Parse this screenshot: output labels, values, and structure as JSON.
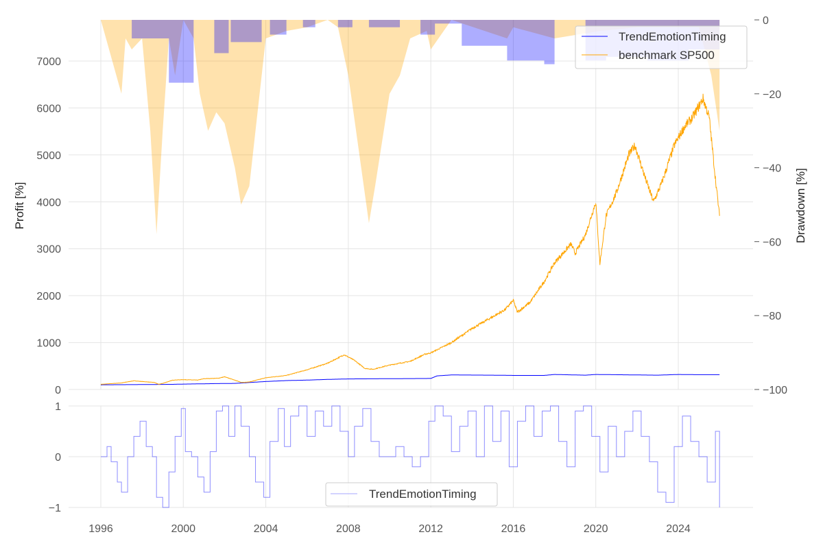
{
  "chart_data": [
    {
      "type": "line",
      "panel": "top",
      "ylabel": "Profit [%]",
      "ylabel_right": "Drawdown [%]",
      "xlim": [
        1994.6,
        2027.6
      ],
      "ylim": [
        0,
        7850
      ],
      "ylim_right": [
        -100,
        0
      ],
      "xticks": [
        1996,
        2000,
        2004,
        2008,
        2012,
        2016,
        2020,
        2024
      ],
      "yticks": [
        0,
        1000,
        2000,
        3000,
        4000,
        5000,
        6000,
        7000
      ],
      "yticks_right": [
        0,
        -20,
        -40,
        -60,
        -80,
        -100
      ],
      "grid": true,
      "legend_position": "top-right",
      "series": [
        {
          "name": "TrendEmotionTiming",
          "color": "#0000ff",
          "x": [
            1996,
            1998,
            1999.5,
            2000,
            2001.5,
            2002.5,
            2004,
            2005,
            2006,
            2007,
            2008,
            2010,
            2012,
            2012.3,
            2013,
            2015,
            2016,
            2017.5,
            2018,
            2019.5,
            2020,
            2022,
            2023,
            2024,
            2025,
            2026
          ],
          "y": [
            100,
            105,
            110,
            115,
            125,
            130,
            170,
            190,
            200,
            215,
            225,
            230,
            235,
            290,
            310,
            305,
            300,
            300,
            320,
            305,
            320,
            310,
            305,
            320,
            315,
            315
          ]
        },
        {
          "name": "benchmark SP500",
          "color": "#ffa500",
          "x": [
            1996,
            1996.5,
            1997,
            1997.6,
            1998,
            1998.6,
            1998.8,
            1999,
            1999.5,
            2000,
            2000.7,
            2001,
            2001.7,
            2002,
            2002.5,
            2002.8,
            2003.2,
            2004,
            2005,
            2006,
            2007,
            2007.8,
            2008.3,
            2008.8,
            2009.2,
            2010,
            2011,
            2011.7,
            2012,
            2013,
            2014,
            2015,
            2015.6,
            2016,
            2016.2,
            2016.8,
            2017.5,
            2018,
            2018.8,
            2019,
            2019.5,
            2020,
            2020.2,
            2020.5,
            2021,
            2021.6,
            2021.9,
            2022.4,
            2022.8,
            2023.2,
            2023.8,
            2024.3,
            2024.7,
            2025.2,
            2025.5,
            2025.8,
            2026
          ],
          "y": [
            110,
            125,
            140,
            185,
            170,
            150,
            110,
            130,
            200,
            210,
            200,
            230,
            240,
            270,
            200,
            150,
            160,
            250,
            300,
            420,
            560,
            740,
            620,
            450,
            430,
            520,
            600,
            750,
            780,
            1000,
            1300,
            1550,
            1700,
            1900,
            1650,
            1850,
            2300,
            2700,
            3100,
            2900,
            3300,
            4000,
            2680,
            3700,
            4200,
            5000,
            5200,
            4500,
            4000,
            4400,
            5200,
            5600,
            5800,
            6200,
            5800,
            4500,
            3700
          ]
        }
      ],
      "drawdown_series": [
        {
          "name": "TrendEmotionTiming drawdown",
          "color": "#0000ff",
          "x": [
            1996,
            1997.5,
            1999.3,
            2000.5,
            2001.5,
            2002.2,
            2002.3,
            2003.8,
            2004.2,
            2005,
            2005.8,
            2006.4,
            2007.5,
            2008.2,
            2009,
            2010.5,
            2011.5,
            2012.2,
            2013.5,
            2015.7,
            2017.5,
            2018,
            2019.5,
            2020.5,
            2022.5,
            2024.5,
            2026
          ],
          "y": [
            0,
            -5,
            -17,
            0,
            -9,
            0,
            -6,
            0,
            -4,
            0,
            -2,
            0,
            -2,
            0,
            -2,
            0,
            -4,
            -1,
            -7,
            -11,
            -12,
            0,
            -11,
            -10,
            -11,
            -8,
            -8
          ]
        },
        {
          "name": "benchmark SP500 drawdown",
          "color": "#ffa500",
          "x": [
            1996,
            1996.5,
            1997,
            1997.2,
            1997.5,
            1998,
            1998.4,
            1998.7,
            1999,
            1999.3,
            1999.6,
            2000,
            2000.5,
            2000.8,
            2001.2,
            2001.6,
            2002,
            2002.5,
            2002.8,
            2003.2,
            2003.7,
            2004,
            2005,
            2006,
            2007,
            2007.5,
            2008,
            2008.5,
            2009,
            2009.3,
            2010,
            2010.5,
            2011,
            2011.8,
            2012,
            2013,
            2015.7,
            2016,
            2018,
            2020.2,
            2022,
            2025,
            2025.6,
            2026
          ],
          "y": [
            0,
            -10,
            -20,
            -5,
            -8,
            -5,
            -30,
            -58,
            -30,
            -5,
            -15,
            0,
            -5,
            -20,
            -30,
            -25,
            -28,
            -40,
            -50,
            -45,
            -20,
            -5,
            -3,
            -2,
            0,
            -2,
            -15,
            -35,
            -55,
            -45,
            -20,
            -15,
            -5,
            -3,
            -8,
            0,
            -5,
            -2,
            -5,
            -3,
            -2,
            -2,
            -15,
            -30
          ]
        }
      ]
    },
    {
      "type": "line",
      "panel": "bottom",
      "ylim": [
        -1,
        1
      ],
      "yticks": [
        -1,
        0,
        1
      ],
      "xticks": [
        1996,
        2000,
        2004,
        2008,
        2012,
        2016,
        2020,
        2024
      ],
      "legend_position": "bottom-center",
      "series": [
        {
          "name": "TrendEmotionTiming",
          "color": "#0000ff",
          "x": [
            1996,
            1996.3,
            1996.5,
            1996.8,
            1997,
            1997.3,
            1997.6,
            1997.9,
            1998.2,
            1998.5,
            1998.7,
            1999,
            1999.3,
            1999.6,
            1999.9,
            2000.1,
            2000.4,
            2000.7,
            2001,
            2001.3,
            2001.6,
            2001.9,
            2002.2,
            2002.5,
            2002.8,
            2003.2,
            2003.5,
            2003.9,
            2004.2,
            2004.6,
            2004.9,
            2005.2,
            2005.6,
            2006,
            2006.4,
            2006.8,
            2007.2,
            2007.6,
            2008,
            2008.3,
            2008.7,
            2009.1,
            2009.5,
            2009.9,
            2010.3,
            2010.7,
            2011.1,
            2011.5,
            2011.9,
            2012.2,
            2012.6,
            2013,
            2013.4,
            2013.8,
            2014.2,
            2014.6,
            2015,
            2015.4,
            2015.8,
            2016.2,
            2016.6,
            2017,
            2017.4,
            2017.8,
            2018.2,
            2018.6,
            2019,
            2019.4,
            2019.8,
            2020.2,
            2020.6,
            2021,
            2021.4,
            2021.8,
            2022.2,
            2022.6,
            2023,
            2023.4,
            2023.8,
            2024.2,
            2024.6,
            2025,
            2025.4,
            2025.8,
            2026
          ],
          "y": [
            0,
            0.2,
            -0.1,
            -0.5,
            -0.7,
            0,
            0.4,
            0.7,
            0.2,
            0,
            -0.8,
            -1,
            -0.3,
            0.4,
            0.95,
            0.1,
            0,
            -0.4,
            -0.7,
            0.1,
            0.9,
            1,
            0.4,
            1,
            0.6,
            0,
            -0.5,
            -0.8,
            0.3,
            0.95,
            0.2,
            0.8,
            1,
            0.4,
            0.9,
            0.6,
            1,
            0.5,
            0,
            0.6,
            0.95,
            0.3,
            0,
            0,
            0.2,
            0,
            -0.2,
            0,
            0.7,
            1,
            0.8,
            0.1,
            0.6,
            0.9,
            0,
            1,
            0.3,
            0.9,
            -0.2,
            0.7,
            1,
            0.4,
            0.9,
            1,
            0.3,
            -0.2,
            0.9,
            1,
            0.4,
            -0.3,
            0.6,
            0,
            0.5,
            0.9,
            0.4,
            -0.1,
            -0.7,
            -0.9,
            0.2,
            0.8,
            0.3,
            0,
            -0.5,
            0.5,
            -1
          ]
        }
      ]
    }
  ]
}
